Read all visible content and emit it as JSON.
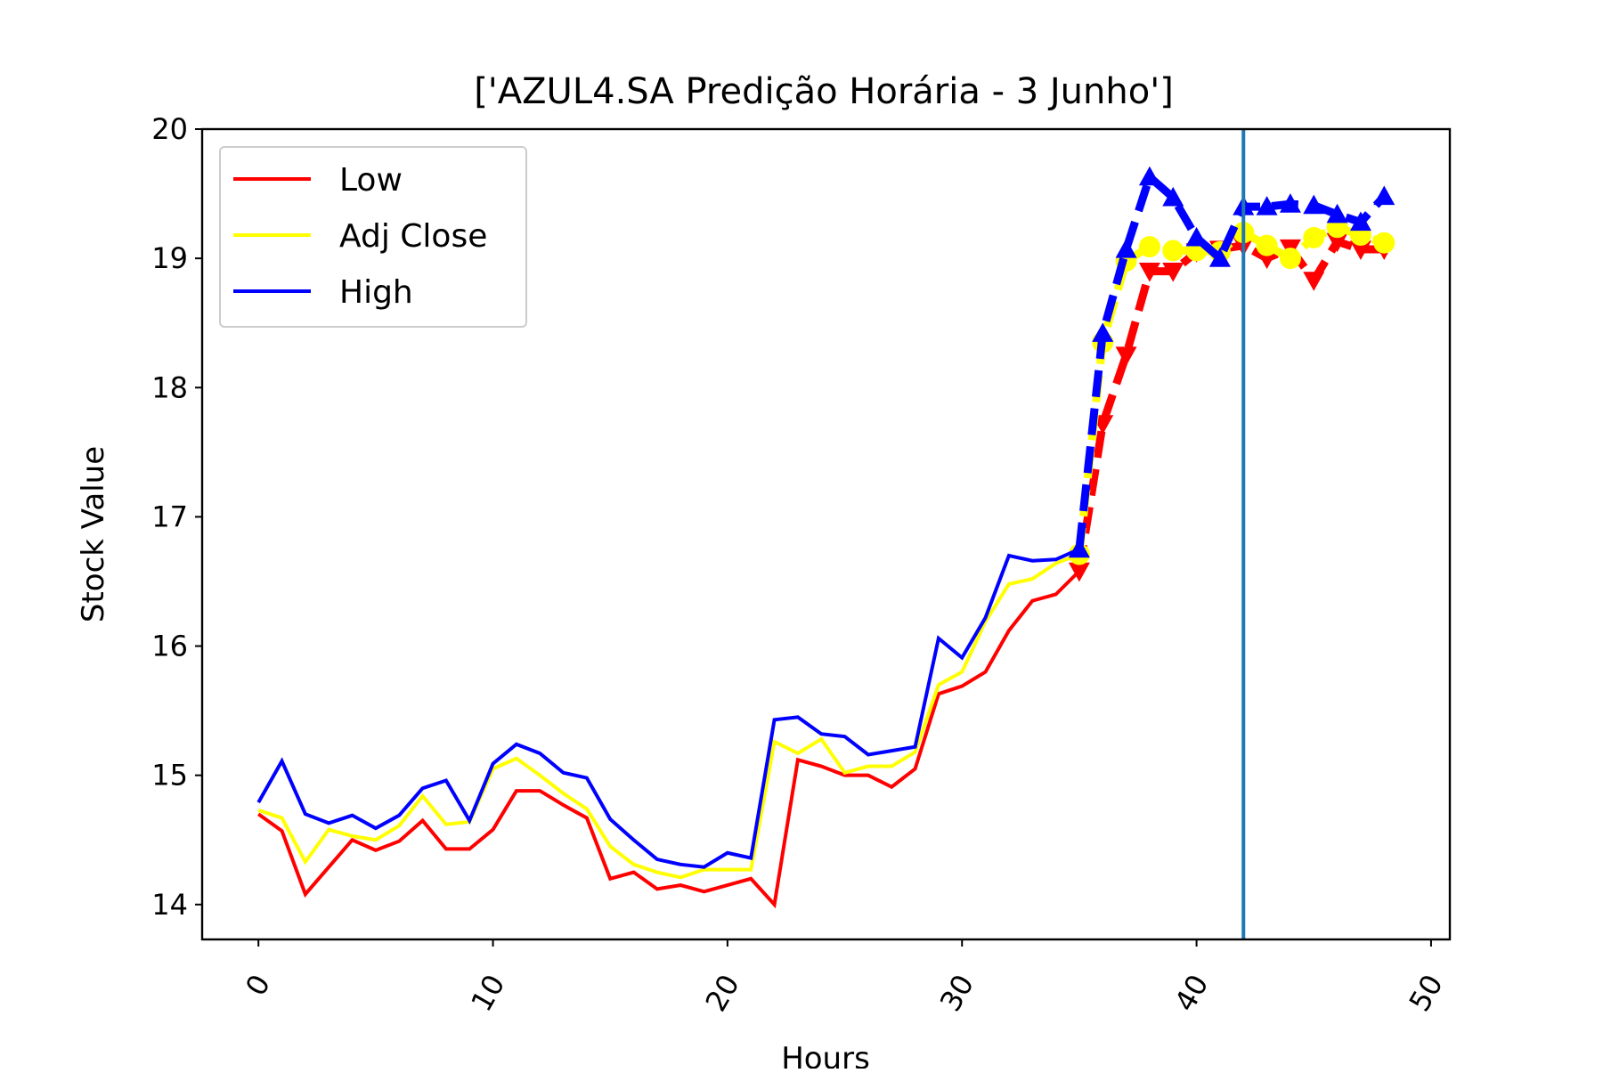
{
  "chart_data": {
    "type": "line",
    "title": "['AZUL4.SA Predição Horária - 3 Junho']",
    "xlabel": "Hours",
    "ylabel": "Stock Value",
    "xlim": [
      -2.4,
      50.8
    ],
    "ylim": [
      13.73,
      20.0
    ],
    "xticks": [
      0,
      10,
      20,
      30,
      40,
      50
    ],
    "yticks": [
      14,
      15,
      16,
      17,
      18,
      19,
      20
    ],
    "xtick_labels": [
      "0",
      "10",
      "20",
      "30",
      "40",
      "50"
    ],
    "ytick_labels": [
      "14",
      "15",
      "16",
      "17",
      "18",
      "19",
      "20"
    ],
    "xtick_rotation": -60,
    "grid": false,
    "legend_position": "top-left",
    "vertical_line": {
      "x": 42,
      "color": "#1f77b4"
    },
    "series": [
      {
        "name": "Low",
        "color": "#ff0000",
        "marker": "triangle-down",
        "values": [
          14.7,
          14.57,
          14.08,
          14.29,
          14.5,
          14.42,
          14.49,
          14.65,
          14.43,
          14.43,
          14.58,
          14.88,
          14.88,
          14.77,
          14.67,
          14.2,
          14.25,
          14.12,
          14.15,
          14.1,
          14.15,
          14.2,
          14.0,
          15.12,
          15.07,
          15.0,
          15.0,
          14.91,
          15.05,
          15.63,
          15.69,
          15.8,
          16.12,
          16.35,
          16.4,
          16.58
        ],
        "predicted_x": [
          35,
          36,
          37,
          38,
          39,
          40,
          41,
          42,
          43,
          44,
          45,
          46,
          47,
          48
        ],
        "predicted": [
          16.58,
          17.72,
          18.25,
          18.9,
          18.9,
          19.05,
          19.07,
          19.1,
          19.0,
          19.08,
          18.83,
          19.13,
          19.07,
          19.07
        ]
      },
      {
        "name": "Adj Close",
        "color": "#ffff00",
        "marker": "circle",
        "values": [
          14.73,
          14.67,
          14.33,
          14.58,
          14.53,
          14.5,
          14.61,
          14.84,
          14.62,
          14.64,
          15.05,
          15.13,
          15.0,
          14.86,
          14.74,
          14.45,
          14.31,
          14.25,
          14.21,
          14.27,
          14.27,
          14.27,
          15.26,
          15.17,
          15.28,
          15.02,
          15.07,
          15.07,
          15.18,
          15.7,
          15.8,
          16.19,
          16.48,
          16.52,
          16.64,
          16.71
        ],
        "predicted_x": [
          35,
          36,
          37,
          38,
          39,
          40,
          41,
          42,
          43,
          44,
          45,
          46,
          47,
          48
        ],
        "predicted": [
          16.71,
          18.35,
          18.98,
          19.09,
          19.06,
          19.06,
          19.05,
          19.2,
          19.1,
          19.0,
          19.16,
          19.24,
          19.18,
          19.12
        ]
      },
      {
        "name": "High",
        "color": "#0000ff",
        "marker": "triangle-up",
        "values": [
          14.79,
          15.11,
          14.7,
          14.63,
          14.69,
          14.59,
          14.69,
          14.9,
          14.96,
          14.65,
          15.09,
          15.24,
          15.17,
          15.02,
          14.98,
          14.66,
          14.5,
          14.35,
          14.31,
          14.29,
          14.4,
          14.36,
          15.43,
          15.45,
          15.32,
          15.3,
          15.16,
          15.19,
          15.22,
          16.06,
          15.91,
          16.22,
          16.7,
          16.66,
          16.67,
          16.75
        ],
        "predicted_x": [
          35,
          36,
          37,
          38,
          39,
          40,
          41,
          42,
          43,
          44,
          45,
          46,
          47,
          48
        ],
        "predicted": [
          16.75,
          18.42,
          19.07,
          19.63,
          19.47,
          19.16,
          19.0,
          19.4,
          19.4,
          19.42,
          19.41,
          19.34,
          19.28,
          19.48
        ]
      }
    ]
  }
}
